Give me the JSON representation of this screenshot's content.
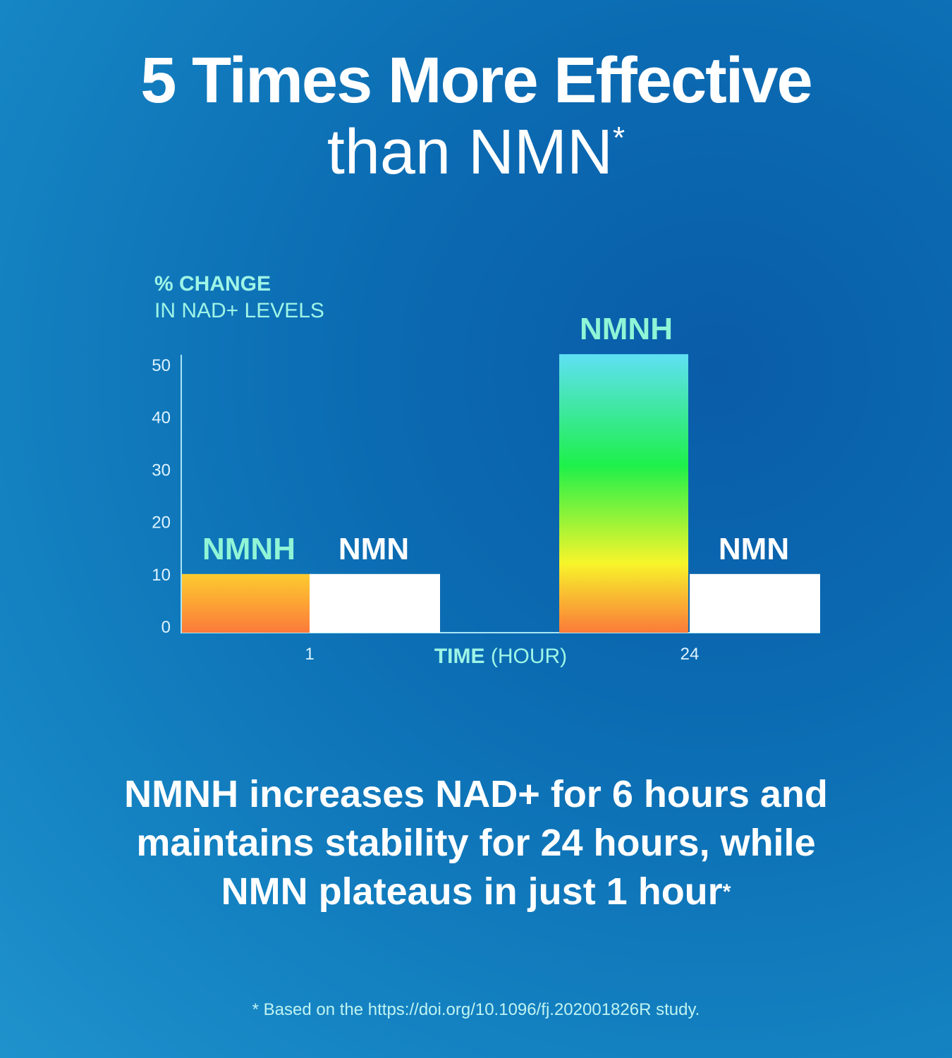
{
  "title_line1": "5 Times More Effective",
  "title_line2": "than NMN",
  "asterisk": "*",
  "description": [
    "NMNH increases NAD+ for 6 hours and",
    "maintains stability for 24 hours, while",
    "NMN plateaus in just 1 hour"
  ],
  "footnote": "* Based on the  https://doi.org/10.1096/fj.202001826R study.",
  "colors": {
    "nmnh_label": "#8ff5d6",
    "nmn_bar": "#ffffff",
    "axis": "#a8e6f5",
    "nmnh_gradient": [
      "#5fe0f5",
      "#1ef04a",
      "#f7f52a",
      "#fb7a3a"
    ]
  },
  "chart_data": {
    "type": "bar",
    "ylabel_bold": "% CHANGE",
    "ylabel": "IN NAD+ LEVELS",
    "xlabel_bold": "TIME",
    "xlabel": "(HOUR)",
    "categories": [
      "1",
      "24"
    ],
    "series": [
      {
        "name": "NMNH",
        "values": [
          10,
          52
        ]
      },
      {
        "name": "NMN",
        "values": [
          10,
          10
        ]
      }
    ],
    "yticks": [
      0,
      10,
      20,
      30,
      40,
      50
    ],
    "ylim": [
      0,
      53
    ],
    "grid": false,
    "legend": "labels above bars"
  }
}
